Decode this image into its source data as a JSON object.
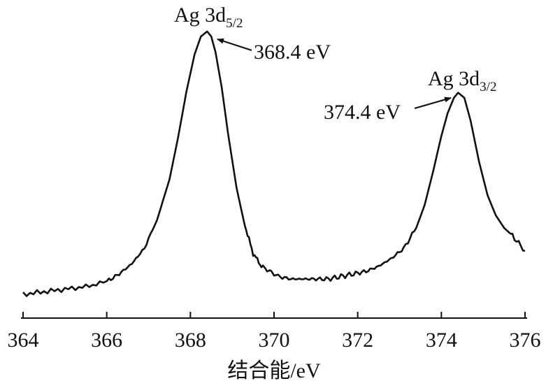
{
  "chart_data": {
    "type": "line",
    "title": "",
    "xlabel": "结合能/eV",
    "ylabel": "",
    "xlim": [
      364,
      376
    ],
    "ylim": [
      0,
      1
    ],
    "x_ticks": [
      364,
      366,
      368,
      370,
      372,
      374,
      376
    ],
    "x_tick_labels": [
      "364",
      "366",
      "368",
      "370",
      "372",
      "374",
      "376"
    ],
    "grid": false,
    "legend": "none",
    "line_color": "#111111",
    "series": [
      {
        "x": [
          364.0,
          364.5,
          365.0,
          365.5,
          366.0,
          366.3,
          366.6,
          366.9,
          367.2,
          367.5,
          367.7,
          367.9,
          368.1,
          368.25,
          368.4,
          368.5,
          368.6,
          368.75,
          368.9,
          369.1,
          369.3,
          369.5,
          369.7,
          369.9,
          370.1,
          370.4,
          370.7,
          371.0,
          371.3,
          371.6,
          371.9,
          372.2,
          372.5,
          372.8,
          373.1,
          373.4,
          373.6,
          373.8,
          374.0,
          374.15,
          374.3,
          374.4,
          374.55,
          374.7,
          374.9,
          375.1,
          375.3,
          375.5,
          375.7,
          376.0
        ],
        "y": [
          0.01,
          0.02,
          0.03,
          0.04,
          0.06,
          0.09,
          0.13,
          0.19,
          0.3,
          0.46,
          0.62,
          0.8,
          0.95,
          1.02,
          1.04,
          1.02,
          0.96,
          0.82,
          0.64,
          0.43,
          0.28,
          0.17,
          0.12,
          0.1,
          0.08,
          0.07,
          0.07,
          0.07,
          0.07,
          0.08,
          0.09,
          0.1,
          0.12,
          0.15,
          0.19,
          0.27,
          0.36,
          0.49,
          0.63,
          0.72,
          0.78,
          0.8,
          0.78,
          0.69,
          0.53,
          0.4,
          0.32,
          0.27,
          0.24,
          0.18
        ]
      }
    ],
    "annotations": [
      {
        "label_main": "Ag 3d",
        "label_sub": "5/2",
        "value_text": "368.4 eV",
        "peak_x": 368.4,
        "peak_y": 1.04
      },
      {
        "label_main": "Ag 3d",
        "label_sub": "3/2",
        "value_text": "374.4 eV",
        "peak_x": 374.4,
        "peak_y": 0.8
      }
    ]
  }
}
